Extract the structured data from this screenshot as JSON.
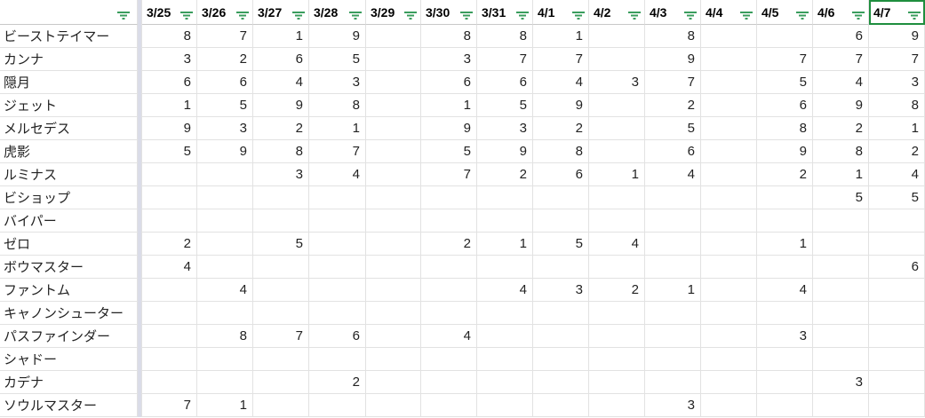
{
  "accent_color": "#1e8e3e",
  "filter_icon_color": "#3a9d5d",
  "headers": [
    "3/25",
    "3/26",
    "3/27",
    "3/28",
    "3/29",
    "3/30",
    "3/31",
    "4/1",
    "4/2",
    "4/3",
    "4/4",
    "4/5",
    "4/6",
    "4/7"
  ],
  "selected_header": "4/7",
  "rows": [
    {
      "name": "ビーストテイマー",
      "values": [
        "8",
        "7",
        "1",
        "9",
        "",
        "8",
        "8",
        "1",
        "",
        "8",
        "",
        "",
        "6",
        "9"
      ]
    },
    {
      "name": "カンナ",
      "values": [
        "3",
        "2",
        "6",
        "5",
        "",
        "3",
        "7",
        "7",
        "",
        "9",
        "",
        "7",
        "7",
        "7"
      ]
    },
    {
      "name": "隠月",
      "values": [
        "6",
        "6",
        "4",
        "3",
        "",
        "6",
        "6",
        "4",
        "3",
        "7",
        "",
        "5",
        "4",
        "3"
      ]
    },
    {
      "name": "ジェット",
      "values": [
        "1",
        "5",
        "9",
        "8",
        "",
        "1",
        "5",
        "9",
        "",
        "2",
        "",
        "6",
        "9",
        "8"
      ]
    },
    {
      "name": "メルセデス",
      "values": [
        "9",
        "3",
        "2",
        "1",
        "",
        "9",
        "3",
        "2",
        "",
        "5",
        "",
        "8",
        "2",
        "1"
      ]
    },
    {
      "name": "虎影",
      "values": [
        "5",
        "9",
        "8",
        "7",
        "",
        "5",
        "9",
        "8",
        "",
        "6",
        "",
        "9",
        "8",
        "2"
      ]
    },
    {
      "name": "ルミナス",
      "values": [
        "",
        "",
        "3",
        "4",
        "",
        "7",
        "2",
        "6",
        "1",
        "4",
        "",
        "2",
        "1",
        "4"
      ]
    },
    {
      "name": "ビショップ",
      "values": [
        "",
        "",
        "",
        "",
        "",
        "",
        "",
        "",
        "",
        "",
        "",
        "",
        "5",
        "5"
      ]
    },
    {
      "name": "バイパー",
      "values": [
        "",
        "",
        "",
        "",
        "",
        "",
        "",
        "",
        "",
        "",
        "",
        "",
        "",
        ""
      ]
    },
    {
      "name": "ゼロ",
      "values": [
        "2",
        "",
        "5",
        "",
        "",
        "2",
        "1",
        "5",
        "4",
        "",
        "",
        "1",
        "",
        ""
      ]
    },
    {
      "name": "ボウマスター",
      "values": [
        "4",
        "",
        "",
        "",
        "",
        "",
        "",
        "",
        "",
        "",
        "",
        "",
        "",
        "6"
      ]
    },
    {
      "name": "ファントム",
      "values": [
        "",
        "4",
        "",
        "",
        "",
        "",
        "4",
        "3",
        "2",
        "1",
        "",
        "4",
        "",
        ""
      ]
    },
    {
      "name": "キャノンシューター",
      "values": [
        "",
        "",
        "",
        "",
        "",
        "",
        "",
        "",
        "",
        "",
        "",
        "",
        "",
        ""
      ]
    },
    {
      "name": "パスファインダー",
      "values": [
        "",
        "8",
        "7",
        "6",
        "",
        "4",
        "",
        "",
        "",
        "",
        "",
        "3",
        "",
        ""
      ]
    },
    {
      "name": "シャドー",
      "values": [
        "",
        "",
        "",
        "",
        "",
        "",
        "",
        "",
        "",
        "",
        "",
        "",
        "",
        ""
      ]
    },
    {
      "name": "カデナ",
      "values": [
        "",
        "",
        "",
        "2",
        "",
        "",
        "",
        "",
        "",
        "",
        "",
        "",
        "3",
        ""
      ]
    },
    {
      "name": "ソウルマスター",
      "values": [
        "7",
        "1",
        "",
        "",
        "",
        "",
        "",
        "",
        "",
        "3",
        "",
        "",
        "",
        ""
      ]
    }
  ]
}
